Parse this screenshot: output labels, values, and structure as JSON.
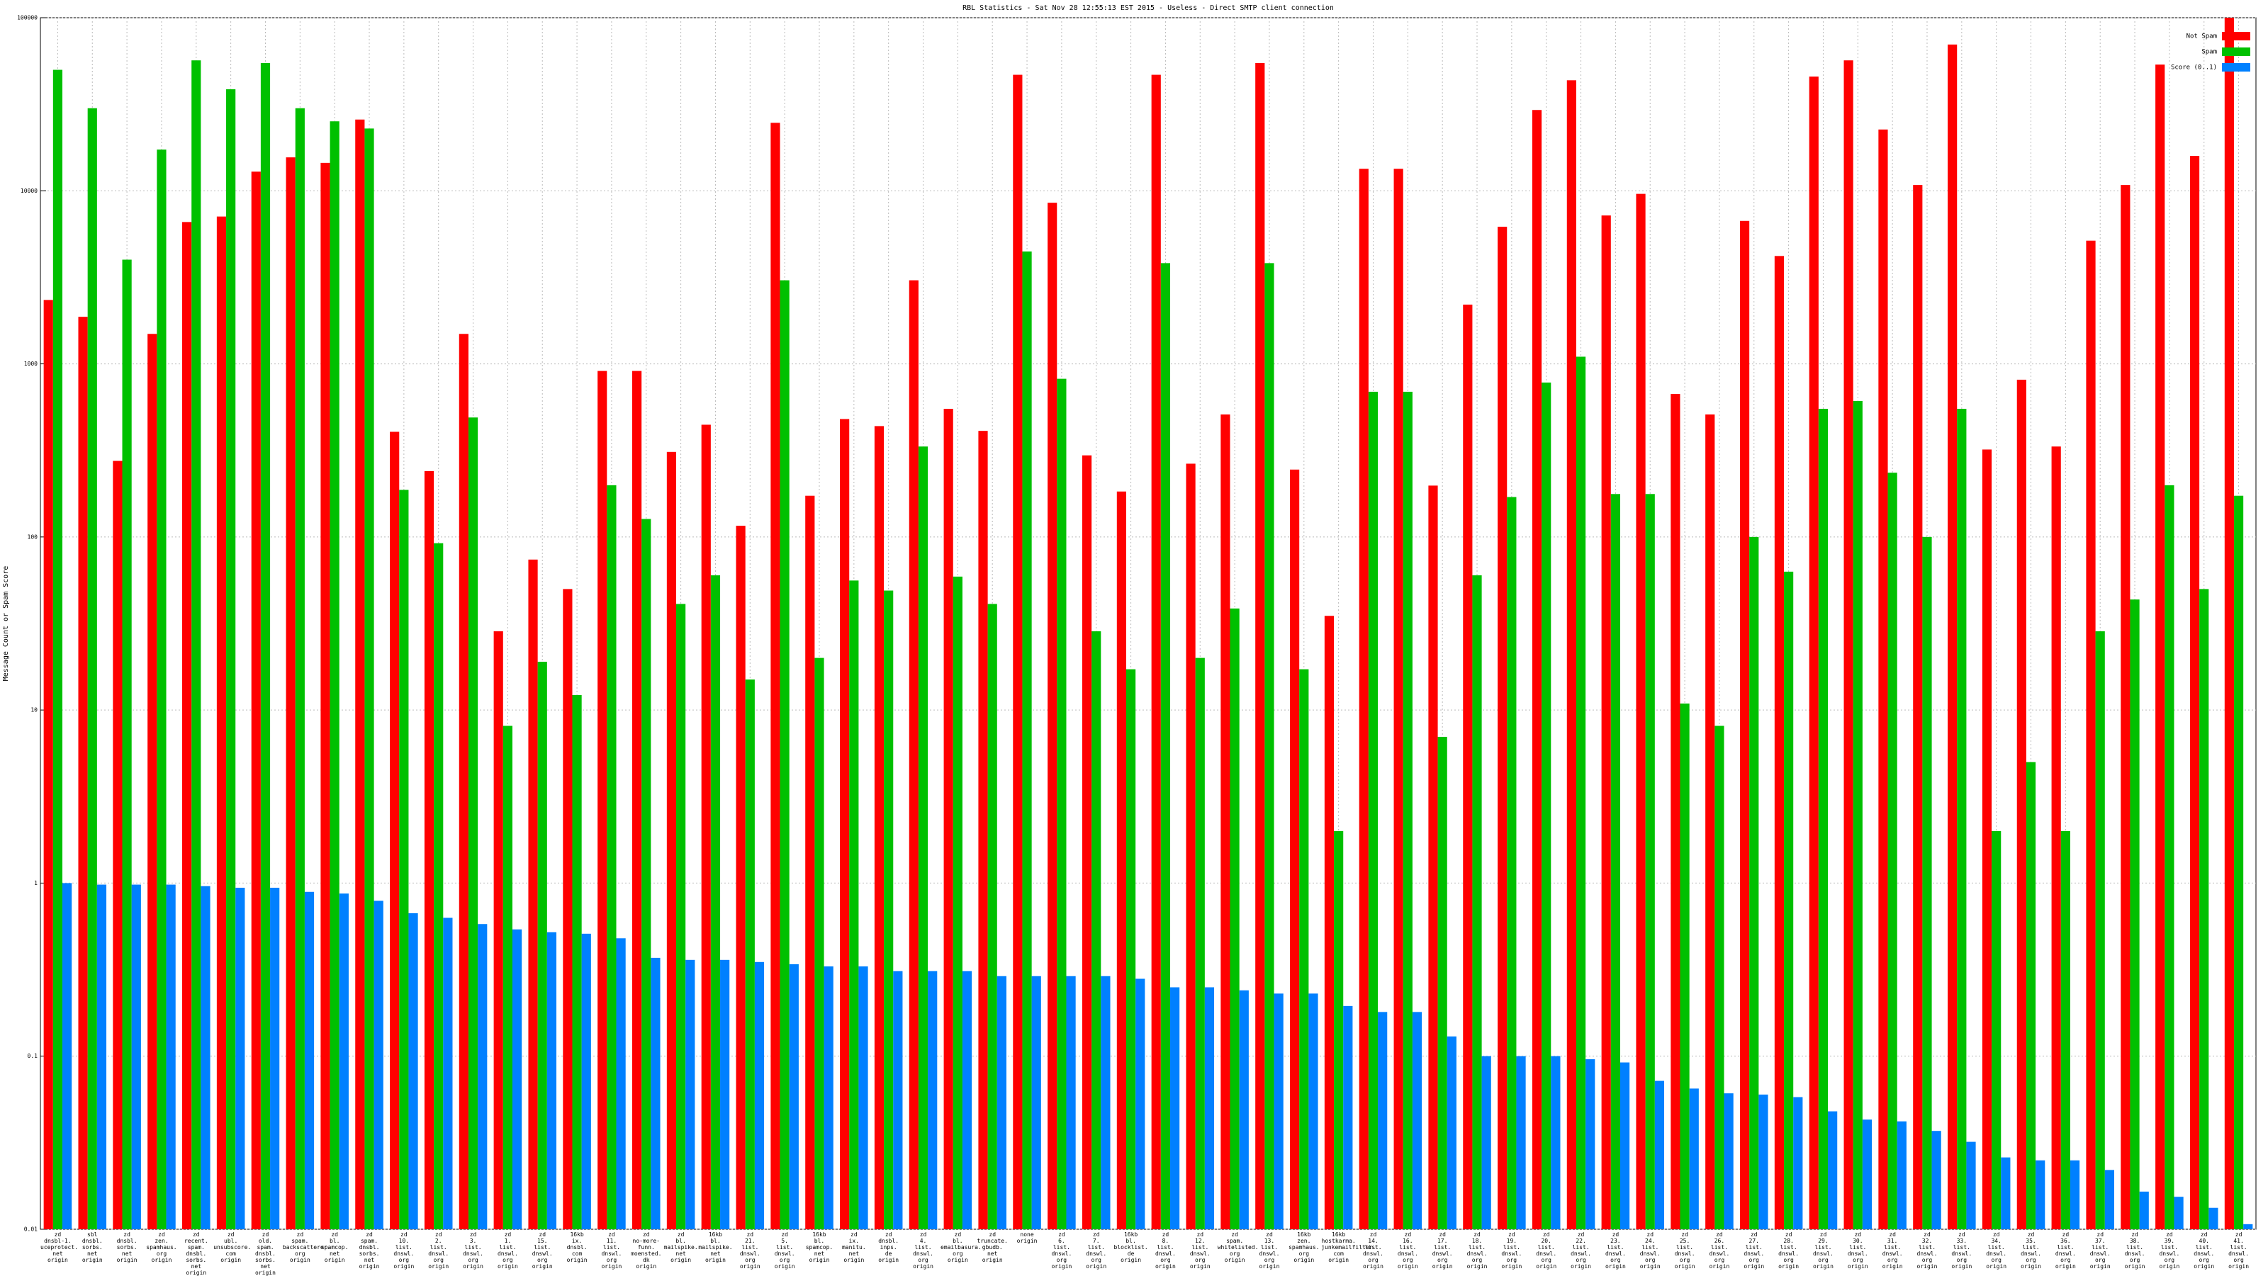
{
  "chart_data": {
    "type": "bar",
    "title": "RBL Statistics - Sat Nov 28 12:55:13 EST 2015 - Useless - Direct SMTP client connection",
    "ylabel": "Message Count or Spam Score",
    "log_scale": true,
    "grid": true,
    "legend": "top-right",
    "ylim": [
      0.01,
      100000
    ],
    "yticks": [
      0.01,
      0.1,
      1,
      10,
      100,
      1000,
      10000,
      100000
    ],
    "categories": [
      "zd\ndnsbl-1.\nuceprotect.\nnet\norigin",
      "sbl\ndnsbl.\nsorbs.\nnet\norigin",
      "zd\ndnsbl.\nsorbs.\nnet\norigin",
      "zd\nzen.\nspamhaus.\norg\norigin",
      "zd\nrecent.\nspam.\ndnsbl.\nsorbs.\nnet\norigin",
      "zd\nubl.\nunsubscore.\ncom\norigin",
      "zd\nold.\nspam.\ndnsbl.\nsorbs.\nnet\norigin",
      "zd\nspam.\nbackscatterer.\norg\norigin",
      "zd\nbl.\nspamcop.\nnet\norigin",
      "zd\nspam.\ndnsbl.\nsorbs.\nnet\norigin",
      "zd\n10.\nlist.\ndnswl.\norg\norigin",
      "zd\n2.\nlist.\ndnswl.\norg\norigin",
      "zd\n3.\nlist.\ndnswl.\norg\norigin",
      "zd\n1.\nlist.\ndnswl.\norg\norigin",
      "zd\n15.\nlist.\ndnswl.\norg\norigin",
      "16kb\nix.\ndnsbl.\ncom\norigin",
      "zd\n11.\nlist.\ndnswl.\norg\norigin",
      "zd\nno-more-funn.\nmoensted.\ndk\norigin",
      "zd\nbl.\nmailspike.\nnet\norigin",
      "16kb\nbl.\nmailspike.\nnet\norigin",
      "zd\n21.\nlist.\ndnswl.\norg\norigin",
      "zd\n5.\nlist.\ndnswl.\norg\norigin",
      "16kb\nbl.\nspamcop.\nnet\norigin",
      "zd\nix.\nmanitu.\nnet\norigin",
      "zd\ndnsbl.\ninps.\nde\norigin",
      "zd\n4.\nlist.\ndnswl.\norg\norigin",
      "zd\nbl.\nemailbasura.\norg\norigin",
      "zd\ntruncate.\ngbudb.\nnet\norigin",
      "none\norigin",
      "zd\n6.\nlist.\ndnswl.\norg\norigin",
      "zd\n7.\nlist.\ndnswl.\norg\norigin",
      "16kb\nbl.\nblocklist.\nde\norigin",
      "zd\n8.\nlist.\ndnswl.\norg\norigin",
      "zd\n12.\nlist.\ndnswl.\norg\norigin",
      "zd\nspam.\nwhitelisted.\norg\norigin",
      "zd\n13.\nlist.\ndnswl.\norg\norigin",
      "16kb\nzen.\nspamhaus.\norg\norigin",
      "16kb\nhostkarma.\njunkemailfilter.\ncom\norigin",
      "zd\n14.\nlist.\ndnswl.\norg\norigin",
      "zd\n16.\nlist.\ndnswl.\norg\norigin",
      "zd\n17.\nlist.\ndnswl.\norg\norigin",
      "zd\n18.\nlist.\ndnswl.\norg\norigin",
      "zd\n19.\nlist.\ndnswl.\norg\norigin",
      "zd\n20.\nlist.\ndnswl.\norg\norigin",
      "zd\n22.\nlist.\ndnswl.\norg\norigin",
      "zd\n23.\nlist.\ndnswl.\norg\norigin",
      "zd\n24.\nlist.\ndnswl.\norg\norigin",
      "zd\n25.\nlist.\ndnswl.\norg\norigin",
      "zd\n26.\nlist.\ndnswl.\norg\norigin",
      "zd\n27.\nlist.\ndnswl.\norg\norigin",
      "zd\n28.\nlist.\ndnswl.\norg\norigin",
      "zd\n29.\nlist.\ndnswl.\norg\norigin",
      "zd\n30.\nlist.\ndnswl.\norg\norigin",
      "zd\n31.\nlist.\ndnswl.\norg\norigin",
      "zd\n32.\nlist.\ndnswl.\norg\norigin",
      "zd\n33.\nlist.\ndnswl.\norg\norigin",
      "zd\n34.\nlist.\ndnswl.\norg\norigin",
      "zd\n35.\nlist.\ndnswl.\norg\norigin",
      "zd\n36.\nlist.\ndnswl.\norg\norigin",
      "zd\n37.\nlist.\ndnswl.\norg\norigin",
      "zd\n38.\nlist.\ndnswl.\norg\norigin",
      "zd\n39.\nlist.\ndnswl.\norg\norigin",
      "zd\n40.\nlist.\ndnswl.\norg\norigin",
      "zd\n41.\nlist.\ndnswl.\norg\norigin"
    ],
    "series": [
      {
        "name": "Not Spam",
        "color": "#ff0000",
        "values": [
          2340,
          1870,
          275,
          1490,
          6600,
          7100,
          12900,
          15600,
          14500,
          25800,
          405,
          240,
          1490,
          28.5,
          74,
          50,
          910,
          910,
          310,
          445,
          116,
          24700,
          173,
          480,
          437,
          3040,
          550,
          410,
          46800,
          8530,
          296,
          183,
          46800,
          265,
          510,
          54700,
          245,
          35,
          13400,
          13400,
          198,
          2200,
          6200,
          29300,
          43500,
          7200,
          9600,
          670,
          510,
          6700,
          4200,
          45700,
          56700,
          22600,
          10800,
          70000,
          320,
          810,
          333,
          5150,
          10800,
          53600,
          15900,
          100000
        ]
      },
      {
        "name": "Spam",
        "color": "#00c000",
        "values": [
          50000,
          30000,
          4000,
          17300,
          56700,
          38600,
          54700,
          30000,
          25200,
          22900,
          187,
          92,
          490,
          8.1,
          19,
          12.2,
          199,
          127,
          41,
          60,
          15,
          3040,
          20,
          56,
          49,
          333,
          59,
          41,
          4460,
          820,
          28.5,
          17.2,
          3820,
          20,
          38.6,
          3820,
          17.2,
          2.0,
          690,
          690,
          7.0,
          60,
          170,
          780,
          1100,
          177,
          177,
          10.9,
          8.1,
          100,
          63,
          550,
          610,
          235,
          100,
          550,
          2.0,
          5.0,
          2.0,
          28.5,
          43.5,
          199,
          50,
          173
        ]
      },
      {
        "name": "Score (0..1)",
        "color": "#0080ff",
        "values": [
          1.0,
          0.98,
          0.98,
          0.98,
          0.96,
          0.94,
          0.94,
          0.89,
          0.87,
          0.79,
          0.67,
          0.63,
          0.58,
          0.54,
          0.52,
          0.51,
          0.48,
          0.37,
          0.36,
          0.36,
          0.35,
          0.34,
          0.33,
          0.33,
          0.31,
          0.31,
          0.31,
          0.29,
          0.29,
          0.29,
          0.29,
          0.28,
          0.25,
          0.25,
          0.24,
          0.23,
          0.23,
          0.195,
          0.18,
          0.18,
          0.13,
          0.1,
          0.1,
          0.1,
          0.096,
          0.092,
          0.072,
          0.065,
          0.061,
          0.06,
          0.058,
          0.048,
          0.043,
          0.042,
          0.037,
          0.032,
          0.026,
          0.025,
          0.025,
          0.022,
          0.0165,
          0.0154,
          0.0133,
          0.0107
        ]
      }
    ]
  }
}
